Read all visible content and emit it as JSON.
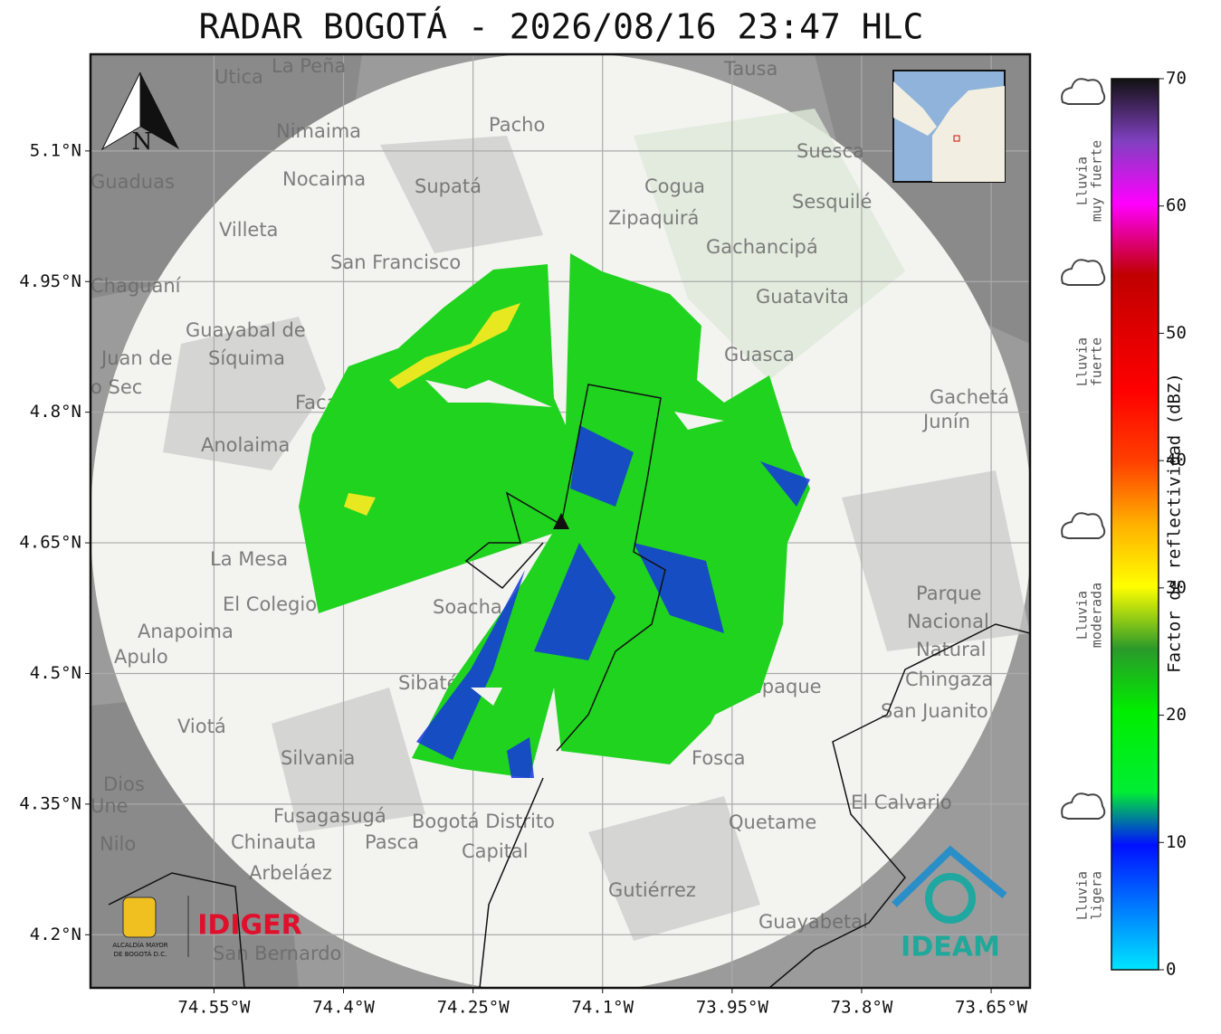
{
  "title": "RADAR BOGOTÁ - 2026/08/16 23:47 HLC",
  "map": {
    "xlim": [
      -74.693,
      -73.605
    ],
    "ylim": [
      4.139,
      5.211
    ],
    "xticks": [
      {
        "value": -74.55,
        "label": "74.55°W"
      },
      {
        "value": -74.4,
        "label": "74.4°W"
      },
      {
        "value": -74.25,
        "label": "74.25°W"
      },
      {
        "value": -74.1,
        "label": "74.1°W"
      },
      {
        "value": -73.95,
        "label": "73.95°W"
      },
      {
        "value": -73.8,
        "label": "73.8°W"
      },
      {
        "value": -73.65,
        "label": "73.65°W"
      }
    ],
    "yticks": [
      {
        "value": 4.2,
        "label": "4.2°N"
      },
      {
        "value": 4.35,
        "label": "4.35°N"
      },
      {
        "value": 4.5,
        "label": "4.5°N"
      },
      {
        "value": 4.65,
        "label": "4.65°N"
      },
      {
        "value": 4.8,
        "label": "4.8°N"
      },
      {
        "value": 4.95,
        "label": "4.95°N"
      },
      {
        "value": 5.1,
        "label": "5.1°N"
      }
    ],
    "north": "N",
    "places": [
      "La Peña",
      "Utica",
      "Tausa",
      "Pacho",
      "Nimaima",
      "Suesca",
      "Guaduas",
      "Nocaima",
      "Supatá",
      "Cogua",
      "Sesquilé",
      "Zipaquirá",
      "Villeta",
      "San Francisco",
      "Gachancipá",
      "Chaguaní",
      "Guatavita",
      "Guayabal de",
      "Síquima",
      "Guasca",
      "Juan de",
      "o Sec",
      "Facatativá",
      "Gachetá",
      "Junín",
      "Anolaima",
      "La Mesa",
      "El Colegio",
      "Soacha",
      "Parque",
      "Nacional",
      "Natural",
      "Chingaza",
      "Anapoima",
      "Apulo",
      "Sibaté",
      "San Juanito",
      "Viotá",
      "Silvania",
      "Dios",
      "Une",
      "Chipaque",
      "Fosca",
      "El Calvario",
      "Fusagasugá",
      "Bogotá Distrito",
      "Capital",
      "Quetame",
      "Nilo",
      "Chinauta",
      "Pasca",
      "Arbeláez",
      "Gutiérrez",
      "Guayabetal",
      "San Bernardo"
    ]
  },
  "logos": {
    "idiger": "IDIGER",
    "alcaldia": [
      "ALCALDÍA MAYOR",
      "DE BOGOTÁ D.C."
    ],
    "ideam": "IDEAM"
  },
  "colorbar": {
    "label": "Factor de reflectividad (dBZ)",
    "lim": [
      0,
      70
    ],
    "ticks": [
      0,
      10,
      20,
      30,
      40,
      50,
      60,
      70
    ],
    "categories": [
      [
        "Lluvia",
        "muy fuerte"
      ],
      [
        "Lluvia",
        "fuerte"
      ],
      [
        "Lluvia",
        "moderada"
      ],
      [
        "Lluvia",
        "ligera"
      ]
    ]
  }
}
